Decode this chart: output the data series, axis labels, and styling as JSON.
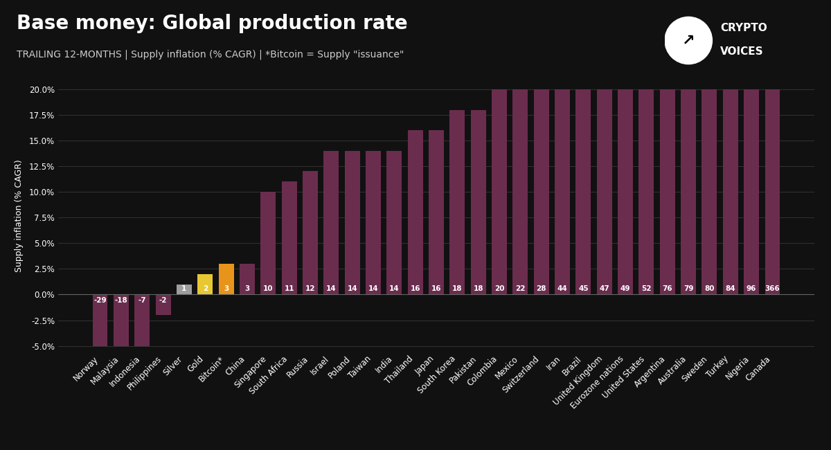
{
  "title": "Base money: Global production rate",
  "subtitle": "TRAILING 12-MONTHS | Supply inflation (% CAGR) | *Bitcoin = Supply \"issuance\"",
  "ylabel": "Supply inflation (% CAGR)",
  "categories": [
    "Norway",
    "Malaysia",
    "Indonesia",
    "Philippines",
    "Silver",
    "Gold",
    "Bitcoin*",
    "China",
    "Singapore",
    "South Africa",
    "Russia",
    "Israel",
    "Poland",
    "Taiwan",
    "India",
    "Thailand",
    "Japan",
    "South Korea",
    "Pakistan",
    "Colombia",
    "Mexico",
    "Switzerland",
    "Iran",
    "Brazil",
    "United Kingdom",
    "Eurozone nations",
    "United States",
    "Argentina",
    "Australia",
    "Sweden",
    "Turkey",
    "Nigeria",
    "Canada"
  ],
  "values": [
    -29,
    -18,
    -7,
    -2,
    1,
    2,
    3,
    3,
    10,
    11,
    12,
    14,
    14,
    14,
    14,
    16,
    16,
    18,
    18,
    20,
    22,
    28,
    44,
    45,
    47,
    49,
    52,
    76,
    79,
    80,
    84,
    96,
    366
  ],
  "bar_labels": [
    "-29",
    "-18",
    "-7",
    "-2",
    "1",
    "2",
    "3",
    "3",
    "10",
    "11",
    "12",
    "14",
    "14",
    "14",
    "14",
    "16",
    "16",
    "18",
    "18",
    "20",
    "22",
    "28",
    "44",
    "45",
    "47",
    "49",
    "52",
    "76",
    "79",
    "80",
    "84",
    "96",
    "366"
  ],
  "bar_colors": [
    "#6b2d4e",
    "#6b2d4e",
    "#6b2d4e",
    "#6b2d4e",
    "#9e9e9e",
    "#e8c832",
    "#e8941a",
    "#6b2d4e",
    "#6b2d4e",
    "#6b2d4e",
    "#6b2d4e",
    "#6b2d4e",
    "#6b2d4e",
    "#6b2d4e",
    "#6b2d4e",
    "#6b2d4e",
    "#6b2d4e",
    "#6b2d4e",
    "#6b2d4e",
    "#6b2d4e",
    "#6b2d4e",
    "#6b2d4e",
    "#6b2d4e",
    "#6b2d4e",
    "#6b2d4e",
    "#6b2d4e",
    "#6b2d4e",
    "#6b2d4e",
    "#6b2d4e",
    "#6b2d4e",
    "#6b2d4e",
    "#6b2d4e",
    "#6b2d4e"
  ],
  "ylim": [
    -5.5,
    20.8
  ],
  "yticks": [
    -5.0,
    -2.5,
    0.0,
    2.5,
    5.0,
    7.5,
    10.0,
    12.5,
    15.0,
    17.5,
    20.0
  ],
  "ytick_labels": [
    "-5.0%",
    "-2.5%",
    "0.0%",
    "2.5%",
    "5.0%",
    "7.5%",
    "10.0%",
    "12.5%",
    "15.0%",
    "17.5%",
    "20.0%"
  ],
  "clip_max": 20.0,
  "clip_min": -5.0,
  "background_color": "#111111",
  "plot_bg_color": "#111111",
  "grid_color": "#333333",
  "text_color": "#ffffff",
  "title_fontsize": 20,
  "subtitle_fontsize": 10,
  "ylabel_fontsize": 9,
  "tick_fontsize": 8.5,
  "bar_label_fontsize": 7.5
}
